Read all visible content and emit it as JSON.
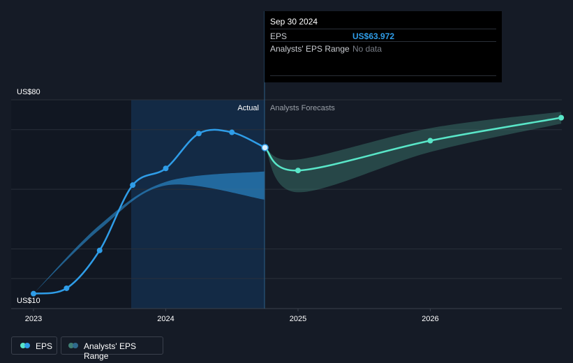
{
  "chart_data": {
    "type": "line",
    "y_axis": {
      "min": 10,
      "max": 80,
      "labels": [
        "US$80",
        "US$10"
      ]
    },
    "x_axis": {
      "ticks": [
        "2023",
        "2024",
        "2025",
        "2026"
      ]
    },
    "section_labels": {
      "actual": "Actual",
      "forecast": "Analysts Forecasts"
    },
    "series": [
      {
        "name": "EPS",
        "color": "#2f9de8",
        "points": [
          {
            "x": 2023.0,
            "y": 15.0
          },
          {
            "x": 2023.25,
            "y": 16.8
          },
          {
            "x": 2023.5,
            "y": 29.5
          },
          {
            "x": 2023.75,
            "y": 51.4
          },
          {
            "x": 2024.0,
            "y": 57.0
          },
          {
            "x": 2024.25,
            "y": 68.7
          },
          {
            "x": 2024.5,
            "y": 69.1
          },
          {
            "x": 2024.75,
            "y": 63.972
          }
        ]
      },
      {
        "name": "EPS forecast",
        "color": "#59e6c8",
        "points": [
          {
            "x": 2024.75,
            "y": 63.972
          },
          {
            "x": 2025.0,
            "y": 56.3
          },
          {
            "x": 2026.0,
            "y": 66.3
          },
          {
            "x": 2026.99,
            "y": 74.0
          }
        ]
      }
    ],
    "range_bands": [
      {
        "name": "Analysts' EPS Range (past)",
        "color": "#2f9de8",
        "upper": [
          {
            "x": 2023.0,
            "y": 15.0
          },
          {
            "x": 2023.5,
            "y": 38.0
          },
          {
            "x": 2024.0,
            "y": 52.5
          },
          {
            "x": 2024.75,
            "y": 56.0
          }
        ],
        "lower": [
          {
            "x": 2023.0,
            "y": 15.0
          },
          {
            "x": 2023.5,
            "y": 36.5
          },
          {
            "x": 2024.0,
            "y": 51.3
          },
          {
            "x": 2024.75,
            "y": 46.5
          }
        ]
      },
      {
        "name": "Analysts' EPS Range (forecast)",
        "color": "#3f7f74",
        "upper": [
          {
            "x": 2024.75,
            "y": 63.972
          },
          {
            "x": 2025.0,
            "y": 60.0
          },
          {
            "x": 2026.0,
            "y": 70.5
          },
          {
            "x": 2026.99,
            "y": 76.0
          }
        ],
        "lower": [
          {
            "x": 2024.75,
            "y": 63.972
          },
          {
            "x": 2025.0,
            "y": 49.0
          },
          {
            "x": 2026.0,
            "y": 62.5
          },
          {
            "x": 2026.99,
            "y": 72.0
          }
        ]
      }
    ]
  },
  "tooltip": {
    "date": "Sep 30 2024",
    "rows": [
      {
        "label": "EPS",
        "value": "US$63.972",
        "value_color": "#2f9de8"
      },
      {
        "label": "Analysts' EPS Range",
        "value": "No data",
        "value_color": "#7a7f88"
      }
    ]
  },
  "legend": [
    {
      "label": "EPS",
      "colors": [
        "#59e6c8",
        "#2f9de8"
      ]
    },
    {
      "label": "Analysts' EPS Range",
      "colors": [
        "#3f7f74",
        "#2f6a8c"
      ]
    }
  ]
}
